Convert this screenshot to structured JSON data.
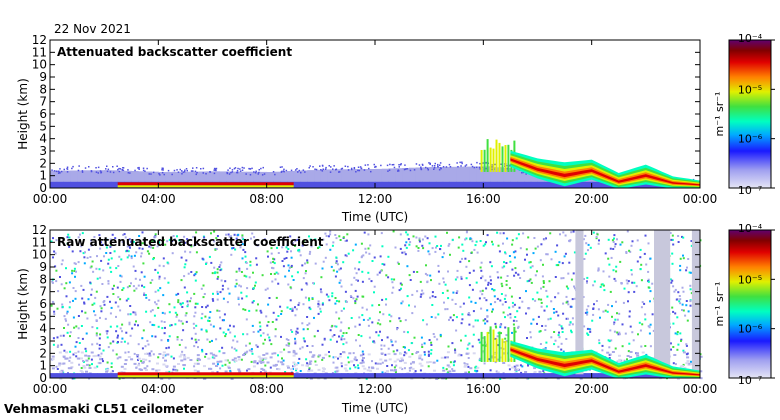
{
  "header": {
    "date": "22 Nov 2021"
  },
  "footer": {
    "instrument": "Vehmasmaki CL51 ceilometer"
  },
  "colors": {
    "colormap": [
      "#d8d8f0",
      "#a9a9e8",
      "#5050e0",
      "#1a1aff",
      "#00aaff",
      "#00ffc0",
      "#40e040",
      "#e0f000",
      "#ff8000",
      "#e00000",
      "#800000",
      "#600070"
    ],
    "axis": "#000000",
    "background": "#ffffff"
  },
  "chart_data": [
    {
      "type": "heatmap",
      "title": "Attenuated backscatter coefficient",
      "xlabel": "Time (UTC)",
      "ylabel": "Height (km)",
      "xlim": [
        "00:00",
        "24:00"
      ],
      "ylim": [
        0,
        12
      ],
      "x_ticks": [
        "00:00",
        "04:00",
        "08:00",
        "12:00",
        "16:00",
        "20:00",
        "00:00"
      ],
      "y_ticks": [
        "0",
        "1",
        "2",
        "3",
        "4",
        "5",
        "6",
        "7",
        "8",
        "9",
        "10",
        "11",
        "12"
      ],
      "colorbar": {
        "label": "m⁻¹ sr⁻¹",
        "scale": "log",
        "range": [
          1e-07,
          0.0001
        ],
        "ticks": [
          "10⁻⁷",
          "10⁻⁶",
          "10⁻⁵",
          "10⁻⁴"
        ]
      },
      "features": {
        "boundary_layer_top_km": [
          [
            0,
            1.4
          ],
          [
            2,
            1.45
          ],
          [
            4,
            1.3
          ],
          [
            6,
            1.35
          ],
          [
            8,
            1.3
          ],
          [
            10,
            1.5
          ],
          [
            12,
            1.55
          ],
          [
            14,
            1.7
          ],
          [
            16,
            1.75
          ],
          [
            17,
            1.6
          ],
          [
            18,
            1.2
          ],
          [
            20,
            0.9
          ],
          [
            22,
            0.6
          ],
          [
            24,
            0.3
          ]
        ],
        "low_cloud_layer": {
          "time_h": [
            2.5,
            9.0
          ],
          "height_km": 0.3
        },
        "precipitation_streaks": {
          "time_h": [
            15.9,
            17.2
          ],
          "height_km": [
            1.3,
            4.2
          ]
        },
        "cloud_band": [
          [
            17.0,
            2.3,
            0.4
          ],
          [
            18.0,
            1.5,
            0.5
          ],
          [
            19.0,
            1.0,
            0.6
          ],
          [
            20.0,
            1.4,
            0.5
          ],
          [
            21.0,
            0.5,
            0.4
          ],
          [
            22.0,
            1.0,
            0.5
          ],
          [
            23.0,
            0.4,
            0.3
          ],
          [
            24.0,
            0.25,
            0.2
          ]
        ]
      }
    },
    {
      "type": "heatmap",
      "title": "Raw attenuated backscatter coefficient",
      "xlabel": "Time (UTC)",
      "ylabel": "Height (km)",
      "xlim": [
        "00:00",
        "24:00"
      ],
      "ylim": [
        0,
        12
      ],
      "x_ticks": [
        "00:00",
        "04:00",
        "08:00",
        "12:00",
        "16:00",
        "20:00",
        "00:00"
      ],
      "y_ticks": [
        "0",
        "1",
        "2",
        "3",
        "4",
        "5",
        "6",
        "7",
        "8",
        "9",
        "10",
        "11",
        "12"
      ],
      "colorbar": {
        "label": "m⁻¹ sr⁻¹",
        "scale": "log",
        "range": [
          1e-07,
          0.0001
        ],
        "ticks": [
          "10⁻⁷",
          "10⁻⁶",
          "10⁻⁵",
          "10⁻⁴"
        ]
      },
      "features": {
        "noise_field_km": [
          0,
          12
        ],
        "low_cloud_layer": {
          "time_h": [
            2.5,
            9.0
          ],
          "height_km": 0.3
        },
        "gray_columns_h": [
          [
            19.4,
            19.7
          ],
          [
            22.3,
            22.9
          ],
          [
            23.7,
            24.0
          ]
        ],
        "precipitation_streaks": {
          "time_h": [
            15.9,
            17.2
          ],
          "height_km": [
            1.3,
            4.2
          ]
        },
        "cloud_band": [
          [
            17.0,
            2.3,
            0.4
          ],
          [
            18.0,
            1.5,
            0.5
          ],
          [
            19.0,
            1.0,
            0.6
          ],
          [
            20.0,
            1.4,
            0.5
          ],
          [
            21.0,
            0.5,
            0.4
          ],
          [
            22.0,
            1.0,
            0.5
          ],
          [
            23.0,
            0.4,
            0.3
          ],
          [
            24.0,
            0.25,
            0.2
          ]
        ]
      }
    }
  ]
}
